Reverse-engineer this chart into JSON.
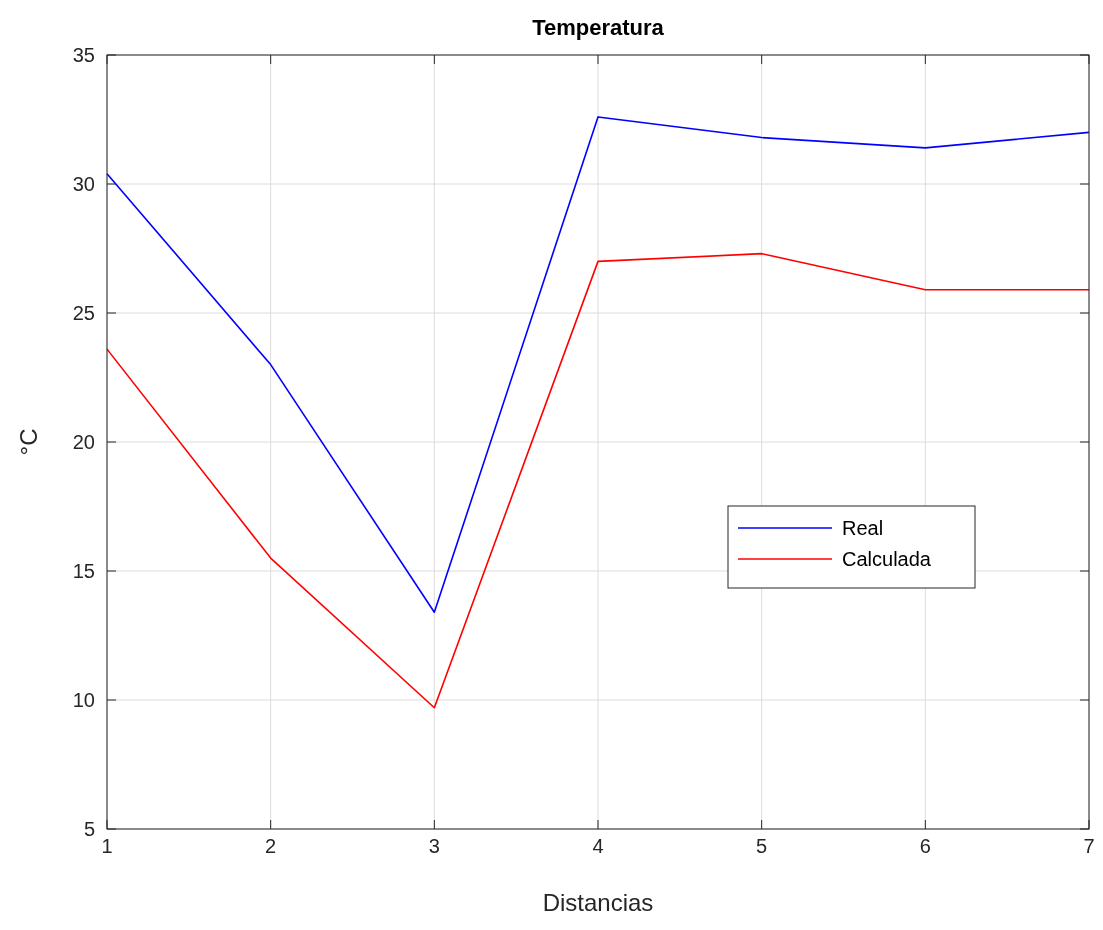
{
  "chart_data": {
    "type": "line",
    "title": "Temperatura",
    "xlabel": "Distancias",
    "ylabel": "°C",
    "x": [
      1,
      2,
      3,
      4,
      5,
      6,
      7
    ],
    "series": [
      {
        "name": "Real",
        "color": "#0000ff",
        "values": [
          30.4,
          23.0,
          13.4,
          32.6,
          31.8,
          31.4,
          32.0
        ]
      },
      {
        "name": "Calculada",
        "color": "#ff0000",
        "values": [
          23.6,
          15.5,
          9.7,
          27.0,
          27.3,
          25.9,
          25.9
        ]
      }
    ],
    "xlim": [
      1,
      7
    ],
    "xticks": [
      1,
      2,
      3,
      4,
      5,
      6,
      7
    ],
    "ylim": [
      5,
      35
    ],
    "yticks": [
      5,
      10,
      15,
      20,
      25,
      30,
      35
    ],
    "grid": true,
    "legend": "right",
    "marker": "none",
    "line_style": "solid"
  }
}
